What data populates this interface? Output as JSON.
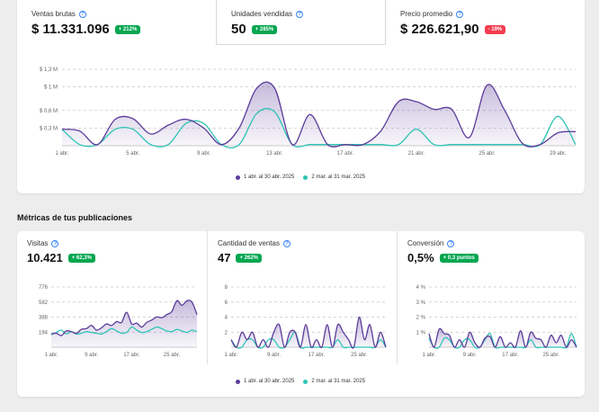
{
  "kpis": [
    {
      "label": "Ventas brutas",
      "value": "$ 11.331.096",
      "badge": "+ 212%",
      "trend": "up"
    },
    {
      "label": "Unidades vendidas",
      "value": "50",
      "badge": "+ 285%",
      "trend": "up"
    },
    {
      "label": "Precio promedio",
      "value": "$ 226.621,90",
      "badge": "- 19%",
      "trend": "down"
    }
  ],
  "colors": {
    "current": "#5b3b9a",
    "previous": "#2ec4b6",
    "fill": "#e4dcf5",
    "up": "#00a650",
    "down": "#f23d4f"
  },
  "legend": {
    "current": "1 abr. al 30 abr. 2025",
    "previous": "2 mar. al 31 mar. 2025"
  },
  "section_title": "Métricas de tus publicaciones",
  "metrics": [
    {
      "label": "Visitas",
      "value": "10.421",
      "badge": "+ 62,3%"
    },
    {
      "label": "Cantidad de ventas",
      "value": "47",
      "badge": "+ 262%"
    },
    {
      "label": "Conversión",
      "value": "0,5%",
      "badge": "+ 0,3 puntos"
    }
  ],
  "chart_data": [
    {
      "type": "area",
      "ylim": [
        0,
        1.3
      ],
      "yticks": [
        "$ 0,3 M",
        "$ 0,6 M",
        "$ 1 M",
        "$ 1,3 M"
      ],
      "ytick_values": [
        0.3,
        0.6,
        1.0,
        1.3
      ],
      "xticks": [
        "1 abr.",
        "5 abr.",
        "9 abr.",
        "13 abr.",
        "17 abr.",
        "21 abr.",
        "25 abr.",
        "29 abr."
      ],
      "xtick_index": [
        0,
        4,
        8,
        12,
        16,
        20,
        24,
        28
      ],
      "series": [
        {
          "name": "1 abr. al 30 abr. 2025",
          "values": [
            0.28,
            0.25,
            0.02,
            0.45,
            0.46,
            0.2,
            0.35,
            0.45,
            0.3,
            0.02,
            0.3,
            0.98,
            0.98,
            0.02,
            0.53,
            0.02,
            0.02,
            0.02,
            0.25,
            0.75,
            0.75,
            0.62,
            0.62,
            0.14,
            1.03,
            0.6,
            0.04,
            0.02,
            0.22,
            0.24
          ]
        },
        {
          "name": "2 mar. al 31 mar. 2025",
          "values": [
            0.28,
            0.02,
            0.02,
            0.28,
            0.28,
            0.02,
            0.02,
            0.38,
            0.38,
            0.02,
            0.02,
            0.55,
            0.58,
            0.02,
            0.02,
            0.02,
            0.02,
            0.02,
            0.02,
            0.02,
            0.28,
            0.02,
            0.02,
            0.02,
            0.02,
            0.02,
            0.02,
            0.02,
            0.5,
            0.02
          ]
        }
      ]
    },
    {
      "type": "area",
      "ylim": [
        0,
        776
      ],
      "yticks": [
        "194",
        "388",
        "582",
        "776"
      ],
      "ytick_values": [
        194,
        388,
        582,
        776
      ],
      "xticks": [
        "1 abr.",
        "9 abr.",
        "17 abr.",
        "25 abr."
      ],
      "xtick_index": [
        0,
        8,
        16,
        24
      ],
      "series": [
        {
          "name": "1 abr. al 30 abr. 2025",
          "values": [
            170,
            180,
            150,
            210,
            200,
            180,
            230,
            240,
            280,
            220,
            250,
            300,
            280,
            330,
            320,
            450,
            300,
            310,
            260,
            320,
            350,
            390,
            380,
            420,
            460,
            600,
            540,
            600,
            580,
            420
          ]
        },
        {
          "name": "2 mar. al 31 mar. 2025",
          "values": [
            160,
            190,
            220,
            170,
            200,
            170,
            180,
            200,
            190,
            180,
            170,
            200,
            240,
            210,
            180,
            190,
            260,
            220,
            190,
            200,
            230,
            260,
            240,
            210,
            200,
            230,
            210,
            190,
            220,
            200
          ]
        }
      ]
    },
    {
      "type": "area",
      "ylim": [
        0,
        8
      ],
      "yticks": [
        "2",
        "4",
        "6",
        "8"
      ],
      "ytick_values": [
        2,
        4,
        6,
        8
      ],
      "xticks": [
        "1 abr.",
        "9 abr.",
        "17 abr.",
        "25 abr."
      ],
      "xtick_index": [
        0,
        8,
        16,
        24
      ],
      "series": [
        {
          "name": "1 abr. al 30 abr. 2025",
          "values": [
            1,
            0,
            2,
            1,
            2,
            0,
            1,
            0,
            2,
            3,
            0,
            2,
            2,
            0,
            3,
            0,
            1,
            0,
            3,
            0,
            3,
            2,
            1,
            0,
            4,
            1,
            3,
            0,
            2,
            0
          ]
        },
        {
          "name": "2 mar. al 31 mar. 2025",
          "values": [
            1,
            0,
            0,
            1,
            1,
            0,
            0,
            1,
            1,
            0,
            0,
            1,
            2,
            0,
            0,
            0,
            0,
            0,
            0,
            0,
            1,
            0,
            0,
            0,
            0,
            0,
            0,
            0,
            1,
            0
          ]
        }
      ]
    },
    {
      "type": "area",
      "ylim": [
        0,
        4
      ],
      "yticks": [
        "1 %",
        "2 %",
        "3 %",
        "4 %"
      ],
      "ytick_values": [
        1,
        2,
        3,
        4
      ],
      "xticks": [
        "1 abr.",
        "9 abr.",
        "17 abr.",
        "25 abr."
      ],
      "xtick_index": [
        0,
        8,
        16,
        24
      ],
      "series": [
        {
          "name": "1 abr. al 30 abr. 2025",
          "values": [
            0.9,
            0.0,
            1.2,
            0.9,
            0.8,
            0.0,
            0.5,
            0.0,
            1.0,
            0.3,
            0.0,
            0.6,
            0.7,
            0.0,
            0.7,
            0.0,
            0.3,
            0.0,
            1.1,
            0.0,
            1.0,
            0.6,
            0.5,
            0.0,
            0.8,
            0.3,
            0.8,
            0.0,
            0.5,
            0.0
          ]
        },
        {
          "name": "2 mar. al 31 mar. 2025",
          "values": [
            0.6,
            0.0,
            0.0,
            0.6,
            0.5,
            0.0,
            0.0,
            0.5,
            0.5,
            0.0,
            0.0,
            0.5,
            0.9,
            0.0,
            0.0,
            0.0,
            0.0,
            0.0,
            0.0,
            0.0,
            0.5,
            0.0,
            0.0,
            0.0,
            0.0,
            0.0,
            0.0,
            0.0,
            0.9,
            0.0
          ]
        }
      ]
    }
  ]
}
